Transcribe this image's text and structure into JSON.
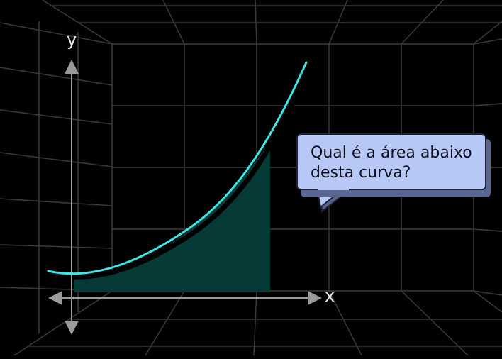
{
  "axes": {
    "x_label": "x",
    "y_label": "y"
  },
  "speech_bubble": {
    "line1": "Qual é a área abaixo",
    "line2": "desta curva?"
  },
  "colors": {
    "background": "#000000",
    "grid": "#3a3a3a",
    "curve": "#3ee6e6",
    "area_fill": "#063a36",
    "axis": "#9a9a9a",
    "bubble_fill": "#b8c8f6",
    "bubble_shadow": "#5a6590"
  },
  "chart_data": {
    "type": "area",
    "curve_shape": "convex increasing (parabola-like)",
    "shaded_region": "area under curve between y-axis and a vertical bound",
    "x_label": "x",
    "y_label": "y"
  }
}
